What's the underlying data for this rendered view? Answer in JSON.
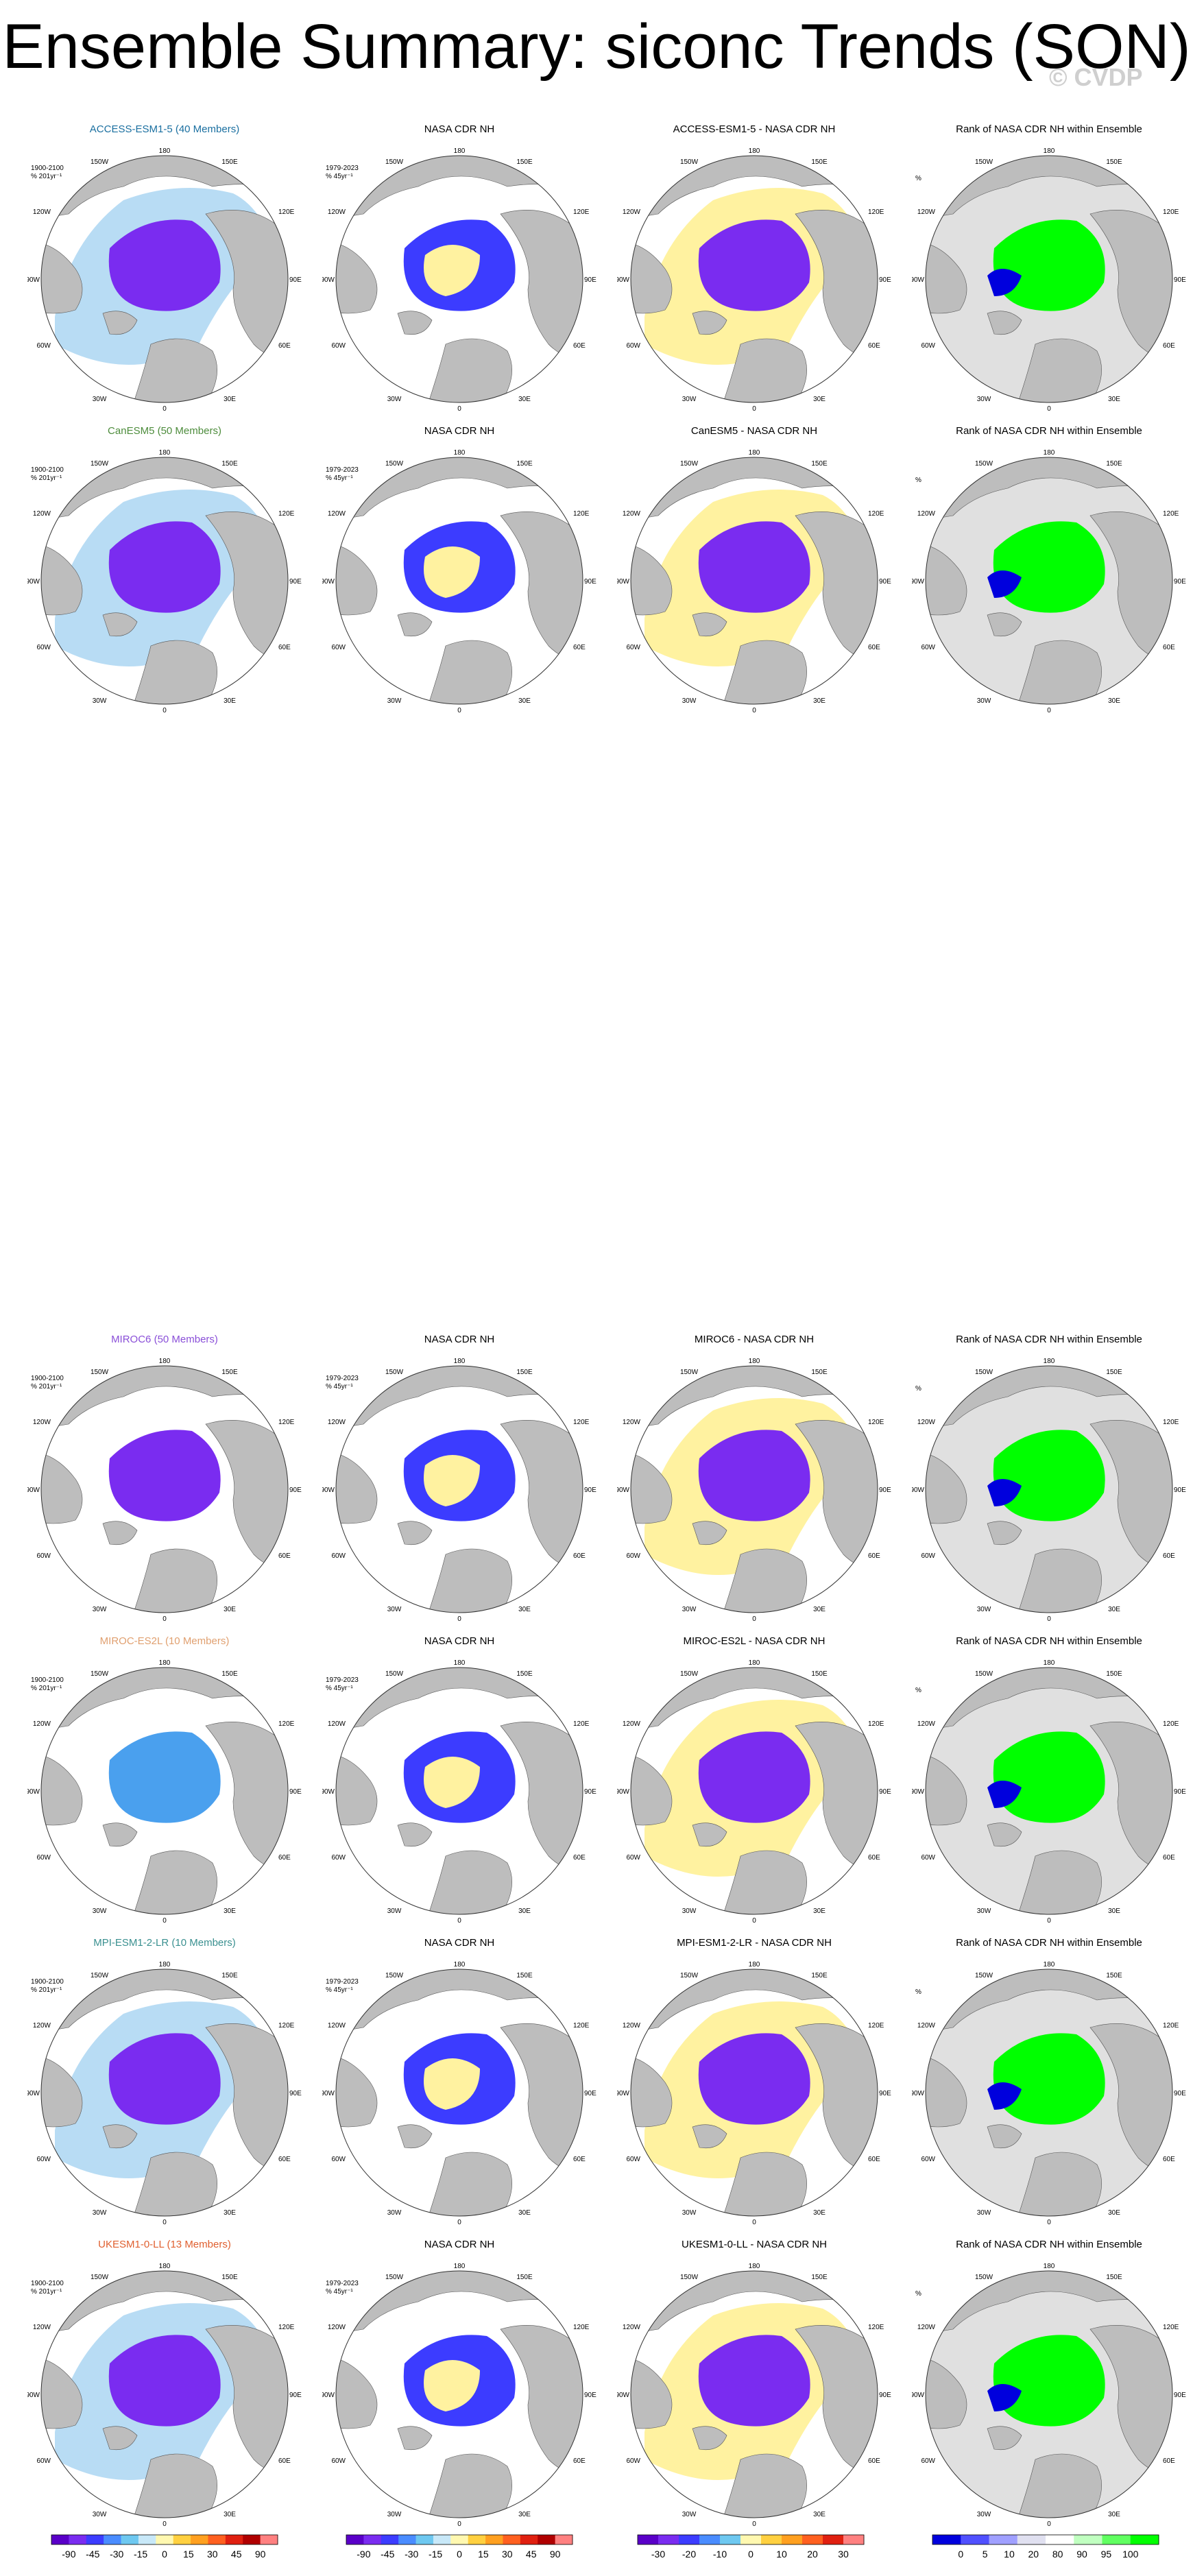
{
  "page": {
    "title": "Ensemble Summary: siconc Trends (SON)",
    "watermark": "© CVDP"
  },
  "rows": [
    {
      "model": "ACCESS-ESM1-5 (40 Members)",
      "model_color": "#1a6fa0",
      "obs": "NASA CDR NH",
      "diff": "ACCESS-ESM1-5 - NASA CDR NH",
      "rank": "Rank of NASA CDR NH within Ensemble",
      "model_period": "1900-2100",
      "model_units": "% 201yr⁻¹",
      "obs_period": "1979-2023",
      "obs_units": "% 45yr⁻¹"
    },
    {
      "model": "CanESM5 (50 Members)",
      "model_color": "#4d8c3c",
      "obs": "NASA CDR NH",
      "diff": "CanESM5 - NASA CDR NH",
      "rank": "Rank of NASA CDR NH within Ensemble",
      "model_period": "1900-2100",
      "model_units": "% 201yr⁻¹",
      "obs_period": "1979-2023",
      "obs_units": "% 45yr⁻¹"
    },
    {
      "model": "MIROC6 (50 Members)",
      "model_color": "#8a4fd8",
      "obs": "NASA CDR NH",
      "diff": "MIROC6 - NASA CDR NH",
      "rank": "Rank of NASA CDR NH within Ensemble",
      "model_period": "1900-2100",
      "model_units": "% 201yr⁻¹",
      "obs_period": "1979-2023",
      "obs_units": "% 45yr⁻¹"
    },
    {
      "model": "MIROC-ES2L (10 Members)",
      "model_color": "#e0a070",
      "obs": "NASA CDR NH",
      "diff": "MIROC-ES2L - NASA CDR NH",
      "rank": "Rank of NASA CDR NH within Ensemble",
      "model_period": "1900-2100",
      "model_units": "% 201yr⁻¹",
      "obs_period": "1979-2023",
      "obs_units": "% 45yr⁻¹"
    },
    {
      "model": "MPI-ESM1-2-LR (10 Members)",
      "model_color": "#3a9090",
      "obs": "NASA CDR NH",
      "diff": "MPI-ESM1-2-LR - NASA CDR NH",
      "rank": "Rank of NASA CDR NH within Ensemble",
      "model_period": "1900-2100",
      "model_units": "% 201yr⁻¹",
      "obs_period": "1979-2023",
      "obs_units": "% 45yr⁻¹"
    },
    {
      "model": "UKESM1-0-LL (13 Members)",
      "model_color": "#e06030",
      "obs": "NASA CDR NH",
      "diff": "UKESM1-0-LL - NASA CDR NH",
      "rank": "Rank of NASA CDR NH within Ensemble",
      "model_period": "1900-2100",
      "model_units": "% 201yr⁻¹",
      "obs_period": "1979-2023",
      "obs_units": "% 45yr⁻¹"
    }
  ],
  "map_labels": {
    "top": "180",
    "bottom": "0",
    "upper_left": "150W",
    "upper_right": "150E",
    "mid_left_high": "120W",
    "mid_right_high": "120E",
    "left": "90W",
    "right": "90E",
    "lower_left": "60W",
    "lower_right": "60E",
    "bottom_left": "30W",
    "bottom_right": "30E"
  },
  "rank_units": "%",
  "colorbars": [
    {
      "labels": [
        "-90",
        "-45",
        "-30",
        "-15",
        "0",
        "15",
        "30",
        "45",
        "90"
      ],
      "colors": [
        "#5a00c8",
        "#7a2cf0",
        "#3c3cff",
        "#4a8cff",
        "#6ec8f0",
        "#c8e8f8",
        "#fff8b0",
        "#ffd040",
        "#ffa020",
        "#ff6020",
        "#e02010",
        "#b00000",
        "#ff8080"
      ]
    },
    {
      "labels": [
        "-90",
        "-45",
        "-30",
        "-15",
        "0",
        "15",
        "30",
        "45",
        "90"
      ],
      "colors": [
        "#5a00c8",
        "#7a2cf0",
        "#3c3cff",
        "#4a8cff",
        "#6ec8f0",
        "#c8e8f8",
        "#fff8b0",
        "#ffd040",
        "#ffa020",
        "#ff6020",
        "#e02010",
        "#b00000",
        "#ff8080"
      ]
    },
    {
      "labels": [
        "-30",
        "-20",
        "-10",
        "0",
        "10",
        "20",
        "30"
      ],
      "colors": [
        "#5a00c8",
        "#7a2cf0",
        "#3c3cff",
        "#4a8cff",
        "#6ec8f0",
        "#fff8b0",
        "#ffd040",
        "#ffa020",
        "#ff6020",
        "#e02010",
        "#ff8080"
      ]
    },
    {
      "labels": [
        "0",
        "5",
        "10",
        "20",
        "80",
        "90",
        "95",
        "100"
      ],
      "colors": [
        "#0000dd",
        "#5050ff",
        "#a0a0ff",
        "#e0e0f0",
        "#ffffff",
        "#c0ffc0",
        "#60ff60",
        "#00ff00"
      ]
    }
  ],
  "palette": {
    "land": "#bdbdbd",
    "ocean": "#ffffff",
    "purple": "#7a2cf0",
    "blue": "#3c3cff",
    "light_blue": "#b8dcf4",
    "yellow": "#fff2a0",
    "green": "#00ff00",
    "rank_gray": "#e0e0e0"
  }
}
